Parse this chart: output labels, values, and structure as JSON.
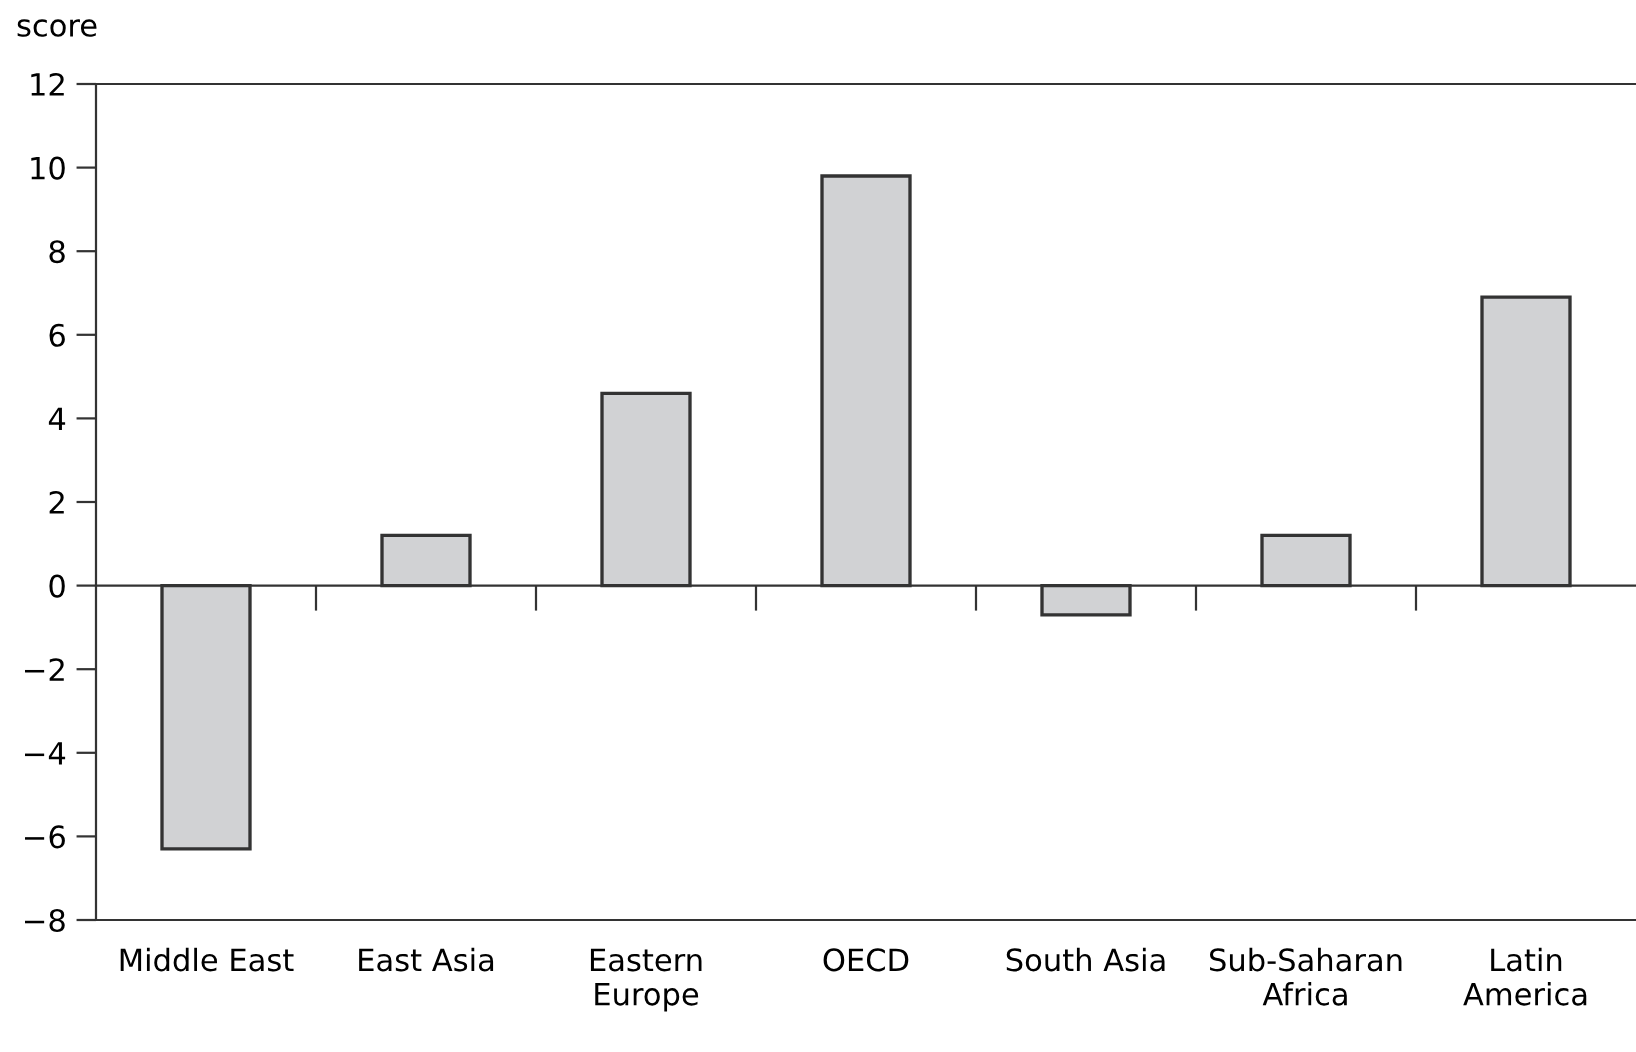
{
  "chart_data": {
    "type": "bar",
    "ylabel": "score",
    "categories": [
      "Middle East",
      "East Asia",
      "Eastern\nEurope",
      "OECD",
      "South Asia",
      "Sub-Saharan\nAfrica",
      "Latin\nAmerica"
    ],
    "values": [
      -6.3,
      1.2,
      4.6,
      9.8,
      -0.7,
      1.2,
      6.9
    ],
    "color": "#d1d2d4",
    "ylim": [
      -8,
      12
    ],
    "yticks": [
      {
        "value": -8,
        "label": "−8"
      },
      {
        "value": -6,
        "label": "−6"
      },
      {
        "value": -4,
        "label": "−4"
      },
      {
        "value": -2,
        "label": "−2"
      },
      0,
      2,
      4,
      6,
      8,
      10,
      12
    ],
    "legend": false
  }
}
